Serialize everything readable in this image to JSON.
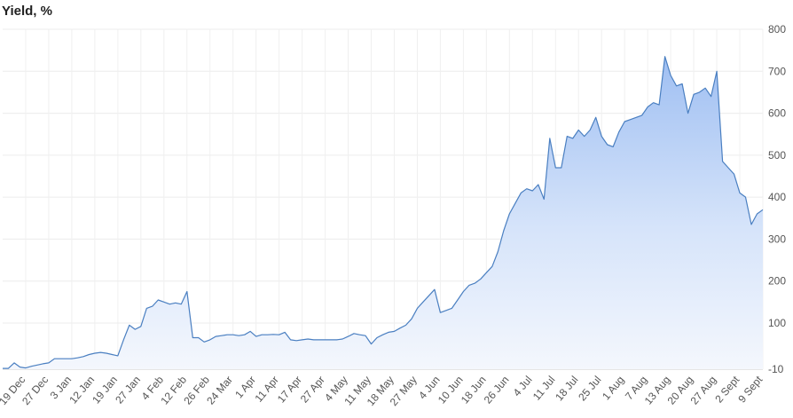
{
  "chart_data": {
    "type": "area",
    "title": "Yield, %",
    "categories": [
      null,
      null,
      null,
      null,
      "19 Dec",
      null,
      null,
      null,
      "27 Dec",
      null,
      null,
      null,
      "3 Jan",
      null,
      null,
      null,
      "12 Jan",
      null,
      null,
      null,
      "19 Jan",
      null,
      null,
      null,
      "27 Jan",
      null,
      null,
      null,
      "4 Feb",
      null,
      null,
      null,
      "12 Feb",
      null,
      null,
      null,
      "26 Feb",
      null,
      null,
      null,
      "24 Mar",
      null,
      null,
      null,
      "1 Apr",
      null,
      null,
      null,
      "11 Apr",
      null,
      null,
      null,
      "17 Apr",
      null,
      null,
      null,
      "27 Apr",
      null,
      null,
      null,
      "4 May",
      null,
      null,
      null,
      "11 May",
      null,
      null,
      null,
      "18 May",
      null,
      null,
      null,
      "27 May",
      null,
      null,
      null,
      "4 Jun",
      null,
      null,
      null,
      "10 Jun",
      null,
      null,
      null,
      "18 Jun",
      null,
      null,
      null,
      "26 Jun",
      null,
      null,
      null,
      "4 Jul",
      null,
      null,
      null,
      "11 Jul",
      null,
      null,
      null,
      "18 Jul",
      null,
      null,
      null,
      "25 Jul",
      null,
      null,
      null,
      "1 Aug",
      null,
      null,
      null,
      "7 Aug",
      null,
      null,
      null,
      "13 Aug",
      null,
      null,
      null,
      "20 Aug",
      null,
      null,
      null,
      "27 Aug",
      null,
      null,
      null,
      "2 Sept",
      null,
      null,
      null,
      "9 Sept"
    ],
    "values": [
      -8,
      -8,
      5,
      -5,
      -7,
      -3,
      0,
      3,
      5,
      15,
      15,
      15,
      15,
      17,
      20,
      25,
      28,
      30,
      28,
      25,
      22,
      60,
      95,
      85,
      92,
      135,
      140,
      155,
      150,
      145,
      148,
      145,
      175,
      65,
      65,
      55,
      60,
      68,
      70,
      72,
      72,
      70,
      72,
      80,
      68,
      72,
      72,
      73,
      72,
      78,
      60,
      58,
      60,
      62,
      60,
      60,
      60,
      60,
      60,
      62,
      68,
      75,
      72,
      70,
      50,
      65,
      72,
      78,
      80,
      88,
      95,
      110,
      135,
      150,
      165,
      180,
      125,
      130,
      135,
      155,
      175,
      190,
      195,
      205,
      220,
      235,
      270,
      320,
      360,
      385,
      410,
      420,
      415,
      430,
      395,
      540,
      470,
      470,
      545,
      540,
      560,
      545,
      560,
      590,
      545,
      525,
      520,
      555,
      580,
      585,
      590,
      595,
      615,
      625,
      620,
      735,
      690,
      665,
      670,
      600,
      645,
      650,
      660,
      640,
      700,
      485,
      470,
      455,
      410,
      400,
      335,
      360,
      370
    ],
    "color": "#4a7fc1",
    "ylim": [
      -10,
      800
    ],
    "yticks": [
      -10,
      100,
      200,
      300,
      400,
      500,
      600,
      700,
      800
    ],
    "grid": true
  }
}
